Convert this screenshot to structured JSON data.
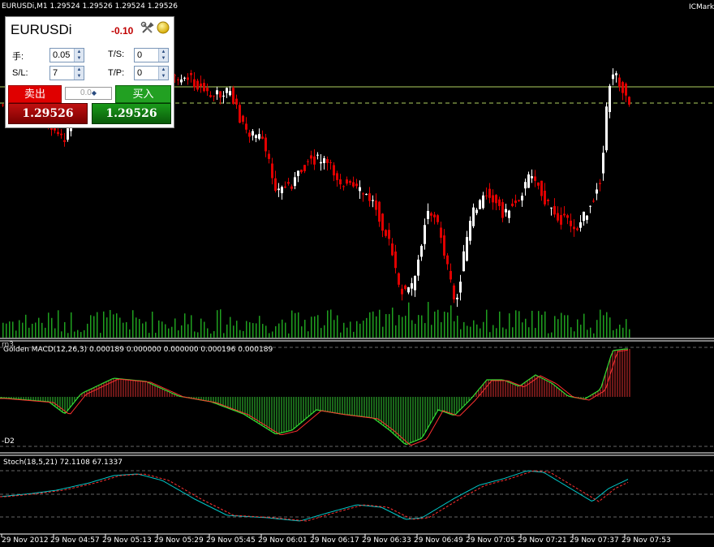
{
  "header": {
    "symbol_info": "EURUSDi,M1  1.29524 1.29526 1.29524 1.29526",
    "broker": "ICMark"
  },
  "trade_panel": {
    "symbol": "EURUSDi",
    "profit": "-0.10",
    "lots_label": "手:",
    "lots_value": "0.05",
    "ts_label": "T/S:",
    "ts_value": "0",
    "sl_label": "S/L:",
    "sl_value": "7",
    "tp_label": "T/P:",
    "tp_value": "0",
    "sell_label": "卖出",
    "buy_label": "买入",
    "sell_price": "1.29526",
    "buy_price": "1.29526",
    "middle_value": "0.0",
    "icons": [
      "tools-icon",
      "coin-icon"
    ]
  },
  "indicators": {
    "volume_label": "rn3",
    "macd_label": "Golden MACD(12,26,3) 0.000189 0.000000 0.000000 0.000196 0.000189",
    "macd_low_label": "-D2",
    "stoch_label": "Stoch(18,5,21) 72.1108 67.1337"
  },
  "time_axis": {
    "labels": [
      "29 Nov 2012",
      "29 Nov 04:57",
      "29 Nov 05:13",
      "29 Nov 05:29",
      "29 Nov 05:45",
      "29 Nov 06:01",
      "29 Nov 06:17",
      "29 Nov 06:33",
      "29 Nov 06:49",
      "29 Nov 07:05",
      "29 Nov 07:21",
      "29 Nov 07:37",
      "29 Nov 07:53"
    ]
  },
  "colors": {
    "bull": "#ffffff",
    "bear": "#e00000",
    "volume": "#1fa01f",
    "macd_pos": "#ff4040",
    "macd_neg": "#33cc33",
    "signal": "#ff3030",
    "stoch_main": "#00c8c8",
    "stoch_signal": "#ff3030",
    "bid_line": "#b0d060",
    "ask_line": "#b0d060"
  }
}
